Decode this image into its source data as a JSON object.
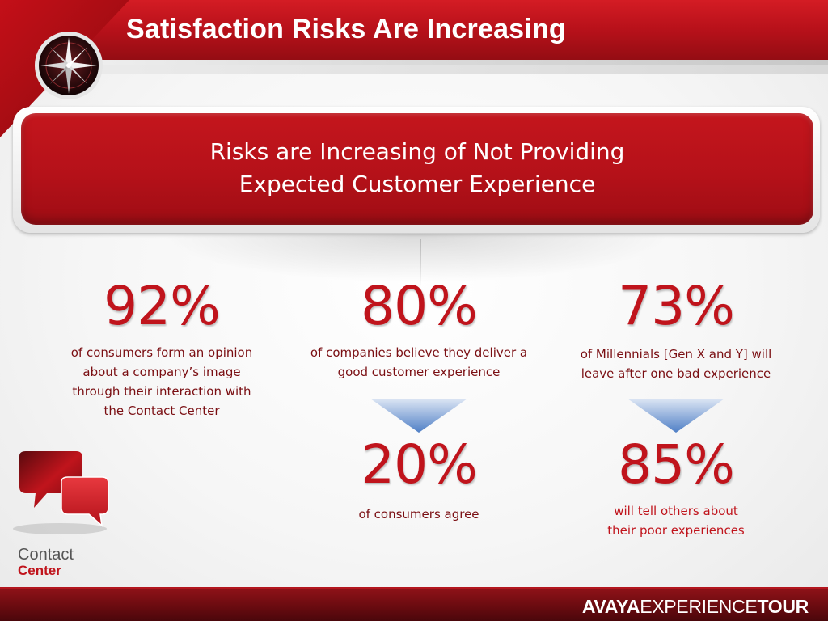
{
  "header": {
    "title": "Satisfaction Risks Are Increasing"
  },
  "banner": {
    "line1": "Risks are Increasing of Not Providing",
    "line2": "Expected Customer Experience"
  },
  "stats": [
    {
      "value": "92%",
      "desc_lines": [
        "of consumers form an opinion",
        "about a company’s image",
        "through their interaction with",
        "the Contact Center"
      ]
    },
    {
      "value": "80%",
      "desc_lines": [
        "of companies believe they deliver a",
        "good customer experience"
      ]
    },
    {
      "value": "73%",
      "desc_lines": [
        "of Millennials [Gen X and Y] will",
        "leave after one bad experience"
      ]
    },
    {
      "value": "20%",
      "desc_lines": [
        "of consumers agree"
      ]
    },
    {
      "value": "85%",
      "desc_lines": [
        "will tell others about",
        "their poor experiences"
      ]
    }
  ],
  "logo": {
    "line1": "Contact",
    "line2": "Center"
  },
  "footer": {
    "brand_bold": "AVAYA",
    "brand_normal": "EXPERIENCE",
    "brand_bold2": "TOUR"
  },
  "colors": {
    "brand_red": "#c0141c",
    "dark_red_text": "#7a0e12",
    "footer_red": "#6a0b10"
  }
}
